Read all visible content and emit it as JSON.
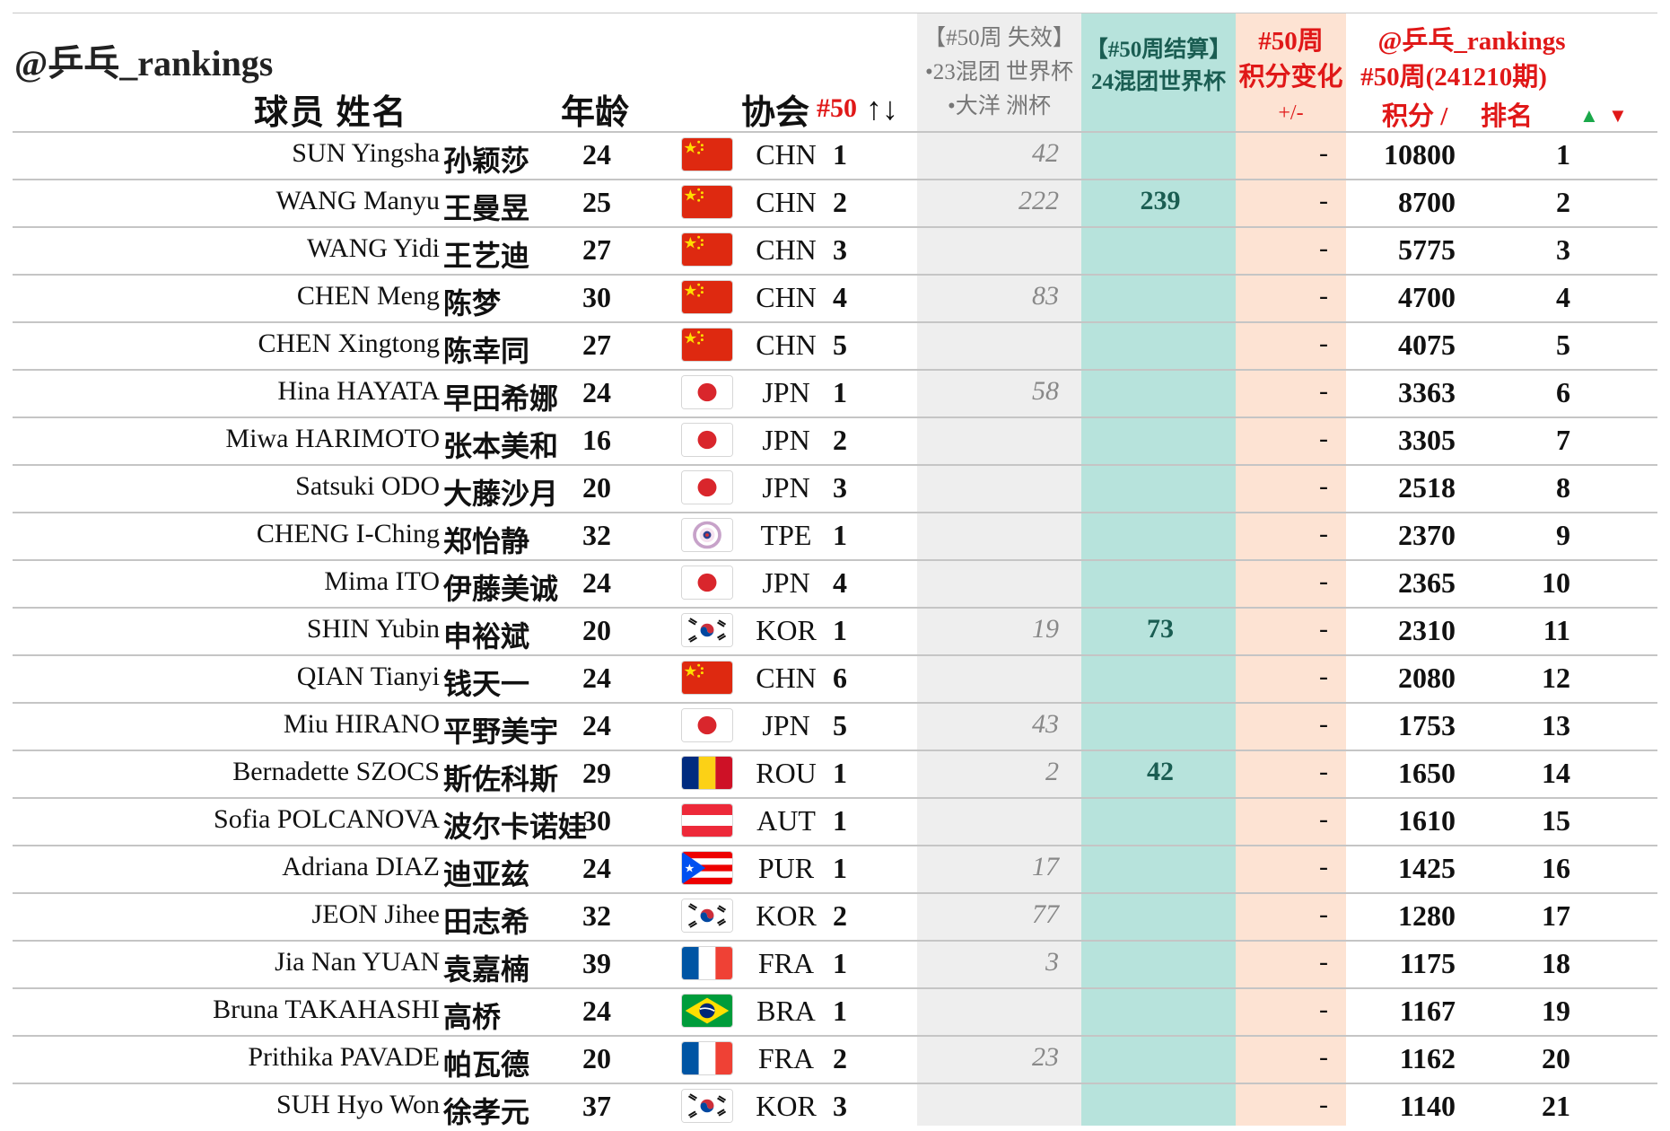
{
  "header": {
    "handle": "@乒乓_rankings",
    "player_label": "球员 姓名",
    "age_label": "年龄",
    "assoc_label": "协会",
    "sort_label": "#50",
    "sort_arrows": "↑↓",
    "expire_lines": [
      "【#50周 失效】",
      "•23混团 世界杯",
      "•大洋 洲杯"
    ],
    "settle_lines": [
      "【#50周结算】",
      "24混团世界杯"
    ],
    "change_lines": [
      "#50周",
      "积分变化",
      "+/-"
    ],
    "ranking_handle": "@乒乓_rankings",
    "ranking_period": "#50周(241210期)",
    "points_label": "积分 /",
    "rank_label": "排名",
    "up_icon": "▲",
    "down_icon": "▼"
  },
  "colors": {
    "accent_red": "#e01818",
    "settle_band": "#b7e3dc",
    "change_band": "#fde3d3",
    "expire_band": "#eeeeee",
    "up_green": "#1aa84a"
  },
  "rows": [
    {
      "name": "SUN Yingsha",
      "cn": "孙颖莎",
      "age": "24",
      "flag": "china-flag",
      "code": "CHN",
      "num": "1",
      "expire": "42",
      "settle": "",
      "change": "-",
      "points": "10800",
      "rank": "1"
    },
    {
      "name": "WANG Manyu",
      "cn": "王曼昱",
      "age": "25",
      "flag": "china-flag",
      "code": "CHN",
      "num": "2",
      "expire": "222",
      "settle": "239",
      "change": "-",
      "points": "8700",
      "rank": "2"
    },
    {
      "name": "WANG Yidi",
      "cn": "王艺迪",
      "age": "27",
      "flag": "china-flag",
      "code": "CHN",
      "num": "3",
      "expire": "",
      "settle": "",
      "change": "-",
      "points": "5775",
      "rank": "3"
    },
    {
      "name": "CHEN Meng",
      "cn": "陈梦",
      "age": "30",
      "flag": "china-flag",
      "code": "CHN",
      "num": "4",
      "expire": "83",
      "settle": "",
      "change": "-",
      "points": "4700",
      "rank": "4"
    },
    {
      "name": "CHEN Xingtong",
      "cn": "陈幸同",
      "age": "27",
      "flag": "china-flag",
      "code": "CHN",
      "num": "5",
      "expire": "",
      "settle": "",
      "change": "-",
      "points": "4075",
      "rank": "5"
    },
    {
      "name": "Hina HAYATA",
      "cn": "早田希娜",
      "age": "24",
      "flag": "japan-flag",
      "code": "JPN",
      "num": "1",
      "expire": "58",
      "settle": "",
      "change": "-",
      "points": "3363",
      "rank": "6"
    },
    {
      "name": "Miwa HARIMOTO",
      "cn": "张本美和",
      "age": "16",
      "flag": "japan-flag",
      "code": "JPN",
      "num": "2",
      "expire": "",
      "settle": "",
      "change": "-",
      "points": "3305",
      "rank": "7"
    },
    {
      "name": "Satsuki ODO",
      "cn": "大藤沙月",
      "age": "20",
      "flag": "japan-flag",
      "code": "JPN",
      "num": "3",
      "expire": "",
      "settle": "",
      "change": "-",
      "points": "2518",
      "rank": "8"
    },
    {
      "name": "CHENG I-Ching",
      "cn": "郑怡静",
      "age": "32",
      "flag": "chinese-taipei-flag",
      "code": "TPE",
      "num": "1",
      "expire": "",
      "settle": "",
      "change": "-",
      "points": "2370",
      "rank": "9"
    },
    {
      "name": "Mima ITO",
      "cn": "伊藤美诚",
      "age": "24",
      "flag": "japan-flag",
      "code": "JPN",
      "num": "4",
      "expire": "",
      "settle": "",
      "change": "-",
      "points": "2365",
      "rank": "10"
    },
    {
      "name": "SHIN Yubin",
      "cn": "申裕斌",
      "age": "20",
      "flag": "korea-flag",
      "code": "KOR",
      "num": "1",
      "expire": "19",
      "settle": "73",
      "change": "-",
      "points": "2310",
      "rank": "11"
    },
    {
      "name": "QIAN Tianyi",
      "cn": "钱天一",
      "age": "24",
      "flag": "china-flag",
      "code": "CHN",
      "num": "6",
      "expire": "",
      "settle": "",
      "change": "-",
      "points": "2080",
      "rank": "12"
    },
    {
      "name": "Miu HIRANO",
      "cn": "平野美宇",
      "age": "24",
      "flag": "japan-flag",
      "code": "JPN",
      "num": "5",
      "expire": "43",
      "settle": "",
      "change": "-",
      "points": "1753",
      "rank": "13"
    },
    {
      "name": "Bernadette SZOCS",
      "cn": "斯佐科斯",
      "age": "29",
      "flag": "romania-flag",
      "code": "ROU",
      "num": "1",
      "expire": "2",
      "settle": "42",
      "change": "-",
      "points": "1650",
      "rank": "14"
    },
    {
      "name": "Sofia POLCANOVA",
      "cn": "波尔卡诺娃",
      "age": "30",
      "flag": "austria-flag",
      "code": "AUT",
      "num": "1",
      "expire": "",
      "settle": "",
      "change": "-",
      "points": "1610",
      "rank": "15"
    },
    {
      "name": "Adriana DIAZ",
      "cn": "迪亚兹",
      "age": "24",
      "flag": "puerto-rico-flag",
      "code": "PUR",
      "num": "1",
      "expire": "17",
      "settle": "",
      "change": "-",
      "points": "1425",
      "rank": "16"
    },
    {
      "name": "JEON Jihee",
      "cn": "田志希",
      "age": "32",
      "flag": "korea-flag",
      "code": "KOR",
      "num": "2",
      "expire": "77",
      "settle": "",
      "change": "-",
      "points": "1280",
      "rank": "17"
    },
    {
      "name": "Jia Nan YUAN",
      "cn": "袁嘉楠",
      "age": "39",
      "flag": "france-flag",
      "code": "FRA",
      "num": "1",
      "expire": "3",
      "settle": "",
      "change": "-",
      "points": "1175",
      "rank": "18"
    },
    {
      "name": "Bruna TAKAHASHI",
      "cn": "高桥",
      "age": "24",
      "flag": "brazil-flag",
      "code": "BRA",
      "num": "1",
      "expire": "",
      "settle": "",
      "change": "-",
      "points": "1167",
      "rank": "19"
    },
    {
      "name": "Prithika PAVADE",
      "cn": "帕瓦德",
      "age": "20",
      "flag": "france-flag",
      "code": "FRA",
      "num": "2",
      "expire": "23",
      "settle": "",
      "change": "-",
      "points": "1162",
      "rank": "20"
    },
    {
      "name": "SUH Hyo Won",
      "cn": "徐孝元",
      "age": "37",
      "flag": "korea-flag",
      "code": "KOR",
      "num": "3",
      "expire": "",
      "settle": "",
      "change": "-",
      "points": "1140",
      "rank": "21"
    }
  ]
}
